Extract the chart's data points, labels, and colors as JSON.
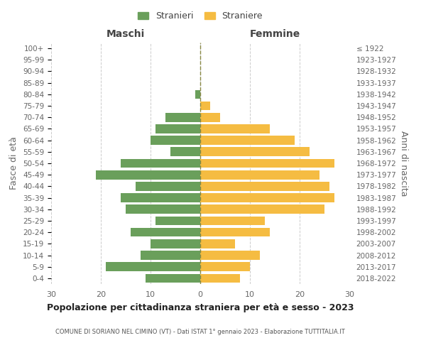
{
  "age_groups": [
    "0-4",
    "5-9",
    "10-14",
    "15-19",
    "20-24",
    "25-29",
    "30-34",
    "35-39",
    "40-44",
    "45-49",
    "50-54",
    "55-59",
    "60-64",
    "65-69",
    "70-74",
    "75-79",
    "80-84",
    "85-89",
    "90-94",
    "95-99",
    "100+"
  ],
  "birth_years": [
    "2018-2022",
    "2013-2017",
    "2008-2012",
    "2003-2007",
    "1998-2002",
    "1993-1997",
    "1988-1992",
    "1983-1987",
    "1978-1982",
    "1973-1977",
    "1968-1972",
    "1963-1967",
    "1958-1962",
    "1953-1957",
    "1948-1952",
    "1943-1947",
    "1938-1942",
    "1933-1937",
    "1928-1932",
    "1923-1927",
    "≤ 1922"
  ],
  "males": [
    11,
    19,
    12,
    10,
    14,
    9,
    15,
    16,
    13,
    21,
    16,
    6,
    10,
    9,
    7,
    0,
    1,
    0,
    0,
    0,
    0
  ],
  "females": [
    8,
    10,
    12,
    7,
    14,
    13,
    25,
    27,
    26,
    24,
    27,
    22,
    19,
    14,
    4,
    2,
    0,
    0,
    0,
    0,
    0
  ],
  "male_color": "#6a9f5b",
  "female_color": "#f5bc42",
  "grid_color": "#cccccc",
  "center_line_color": "#888844",
  "title": "Popolazione per cittadinanza straniera per età e sesso - 2023",
  "subtitle": "COMUNE DI SORIANO NEL CIMINO (VT) - Dati ISTAT 1° gennaio 2023 - Elaborazione TUTTITALIA.IT",
  "xlabel_left": "Maschi",
  "xlabel_right": "Femmine",
  "ylabel_left": "Fasce di età",
  "ylabel_right": "Anni di nascita",
  "legend_male": "Stranieri",
  "legend_female": "Straniere",
  "xlim": 30,
  "background_color": "#ffffff"
}
